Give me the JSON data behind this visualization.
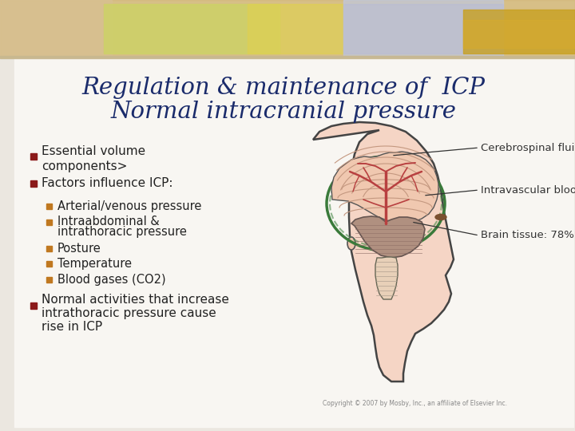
{
  "title_line1": "Regulation & maintenance of  ICP",
  "title_line2": "Normal intracranial pressure",
  "title_color": "#1a2b6b",
  "bg_color": "#f2f0ec",
  "slide_bg": "#d8cfc0",
  "bullet_color": "#8b1a1a",
  "sub_bullet_color": "#c07820",
  "text_color": "#222222",
  "bullet1": "Essential volume\ncomponents>",
  "bullet2": "Factors influence ICP:",
  "sub_bullets": [
    "Arterial/venous pressure",
    "Intraabdominal &\nintrathoracic pressure",
    "Posture",
    "Temperature",
    "Blood gases (CO2)"
  ],
  "bullet3": "Normal activities that increase\nintrathoracic pressure cause\nrise in ICP",
  "copyright": "Copyright © 2007 by Mosby, Inc., an affiliate of Elsevier Inc."
}
